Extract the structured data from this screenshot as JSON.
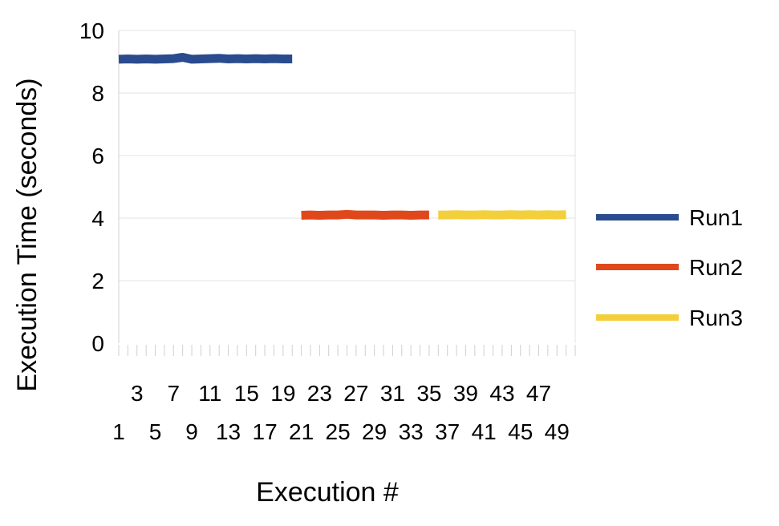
{
  "chart_data": {
    "type": "line",
    "title": "",
    "xlabel": "Execution #",
    "ylabel": "Execution Time (seconds)",
    "ylim": [
      0,
      10
    ],
    "yticks": [
      "0",
      "2",
      "4",
      "6",
      "8",
      "10"
    ],
    "xlim": [
      1,
      51
    ],
    "xtick_labels_top": [
      "3",
      "7",
      "11",
      "15",
      "19",
      "23",
      "27",
      "31",
      "35",
      "39",
      "43",
      "47"
    ],
    "xtick_labels_bottom": [
      "1",
      "5",
      "9",
      "13",
      "17",
      "21",
      "25",
      "29",
      "33",
      "37",
      "41",
      "45",
      "49"
    ],
    "grid": "horizontal",
    "legend_position": "right",
    "series": [
      {
        "name": "Run1",
        "color": "#2a4b8d",
        "x": [
          1,
          2,
          3,
          4,
          5,
          6,
          7,
          8,
          9,
          10,
          11,
          12,
          13,
          14,
          15,
          16,
          17,
          18,
          19,
          20
        ],
        "values": [
          9.08,
          9.09,
          9.08,
          9.09,
          9.08,
          9.09,
          9.1,
          9.14,
          9.08,
          9.09,
          9.1,
          9.11,
          9.09,
          9.1,
          9.09,
          9.1,
          9.09,
          9.1,
          9.09,
          9.09
        ]
      },
      {
        "name": "Run2",
        "color": "#e0481c",
        "x": [
          21,
          22,
          23,
          24,
          25,
          26,
          27,
          28,
          29,
          30,
          31,
          32,
          33,
          34,
          35
        ],
        "values": [
          4.09,
          4.1,
          4.09,
          4.1,
          4.1,
          4.12,
          4.1,
          4.1,
          4.1,
          4.09,
          4.1,
          4.1,
          4.09,
          4.1,
          4.1
        ]
      },
      {
        "name": "Run3",
        "color": "#f3cf3c",
        "x": [
          36,
          37,
          38,
          39,
          40,
          41,
          42,
          43,
          44,
          45,
          46,
          47,
          48,
          49,
          50
        ],
        "values": [
          4.1,
          4.1,
          4.11,
          4.1,
          4.1,
          4.11,
          4.1,
          4.1,
          4.11,
          4.1,
          4.11,
          4.1,
          4.11,
          4.1,
          4.11
        ]
      }
    ]
  }
}
